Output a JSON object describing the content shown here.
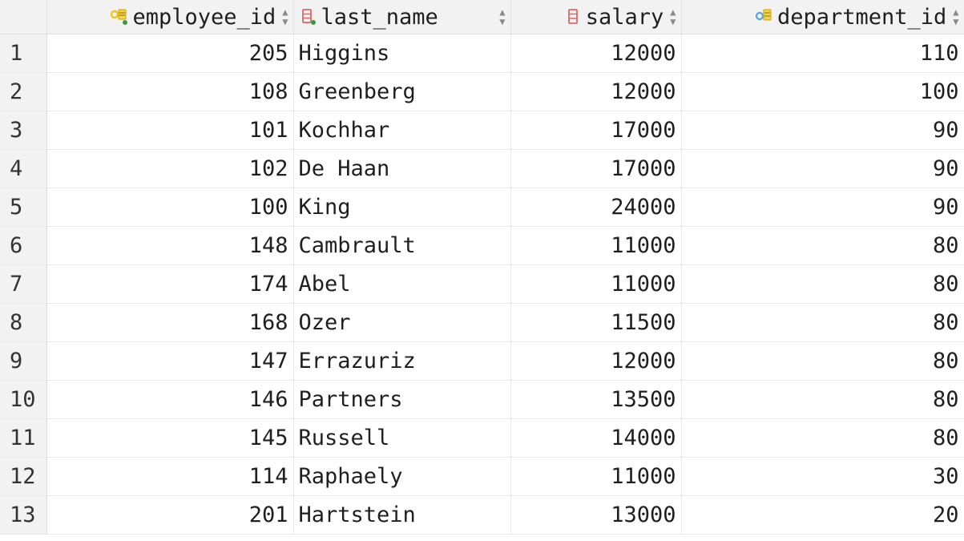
{
  "columns": [
    {
      "label": "employee_id",
      "icon": "primary-key-column-icon",
      "align": "right"
    },
    {
      "label": "last_name",
      "icon": "not-null-column-icon",
      "align": "left"
    },
    {
      "label": "salary",
      "icon": "column-icon",
      "align": "right"
    },
    {
      "label": "department_id",
      "icon": "foreign-key-column-icon",
      "align": "right"
    }
  ],
  "rows": [
    {
      "n": "1",
      "employee_id": "205",
      "last_name": "Higgins",
      "salary": "12000",
      "department_id": "110"
    },
    {
      "n": "2",
      "employee_id": "108",
      "last_name": "Greenberg",
      "salary": "12000",
      "department_id": "100"
    },
    {
      "n": "3",
      "employee_id": "101",
      "last_name": "Kochhar",
      "salary": "17000",
      "department_id": "90"
    },
    {
      "n": "4",
      "employee_id": "102",
      "last_name": "De Haan",
      "salary": "17000",
      "department_id": "90"
    },
    {
      "n": "5",
      "employee_id": "100",
      "last_name": "King",
      "salary": "24000",
      "department_id": "90"
    },
    {
      "n": "6",
      "employee_id": "148",
      "last_name": "Cambrault",
      "salary": "11000",
      "department_id": "80"
    },
    {
      "n": "7",
      "employee_id": "174",
      "last_name": "Abel",
      "salary": "11000",
      "department_id": "80"
    },
    {
      "n": "8",
      "employee_id": "168",
      "last_name": "Ozer",
      "salary": "11500",
      "department_id": "80"
    },
    {
      "n": "9",
      "employee_id": "147",
      "last_name": "Errazuriz",
      "salary": "12000",
      "department_id": "80"
    },
    {
      "n": "10",
      "employee_id": "146",
      "last_name": "Partners",
      "salary": "13500",
      "department_id": "80"
    },
    {
      "n": "11",
      "employee_id": "145",
      "last_name": "Russell",
      "salary": "14000",
      "department_id": "80"
    },
    {
      "n": "12",
      "employee_id": "114",
      "last_name": "Raphaely",
      "salary": "11000",
      "department_id": "30"
    },
    {
      "n": "13",
      "employee_id": "201",
      "last_name": "Hartstein",
      "salary": "13000",
      "department_id": "20"
    }
  ],
  "colors": {
    "header_bg": "#f2f2f2",
    "gridline": "#e8e8e8",
    "key_yellow": "#f0c419",
    "key_blue": "#5aa9e6",
    "column_red": "#e06666",
    "notnull_green": "#3a9a3a"
  }
}
